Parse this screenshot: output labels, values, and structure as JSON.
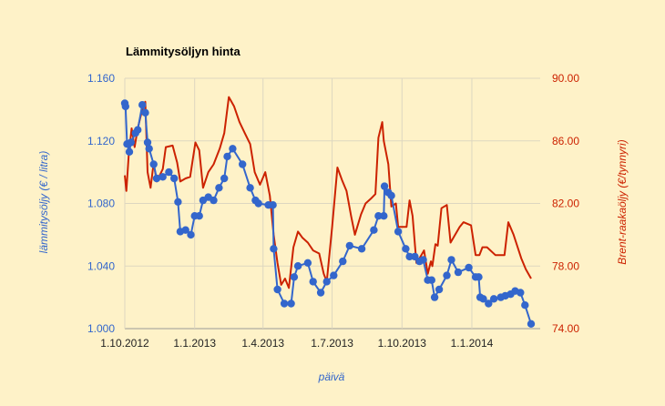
{
  "chart_data": {
    "type": "line",
    "title": "Lämmitysöljyn hinta",
    "xlabel": "päivä",
    "ylabel_left": "lämmitysöljy (€ / litra)",
    "ylabel_right": "Brent-raakaöljy (€/tynnyri)",
    "x_ticks": [
      {
        "label": "1.10.2012",
        "date": "2012-10-01"
      },
      {
        "label": "1.1.2013",
        "date": "2013-01-01"
      },
      {
        "label": "1.4.2013",
        "date": "2013-04-01"
      },
      {
        "label": "1.7.2013",
        "date": "2013-07-01"
      },
      {
        "label": "1.10.2013",
        "date": "2013-10-01"
      },
      {
        "label": "1.1.2014",
        "date": "2014-01-01"
      }
    ],
    "xlim": [
      "2012-10-01",
      "2014-04-01"
    ],
    "y_left": {
      "range": [
        1.0,
        1.16
      ],
      "ticks": [
        "1.000",
        "1.040",
        "1.080",
        "1.120",
        "1.160"
      ],
      "color": "#3366cc"
    },
    "y_right": {
      "range": [
        74.0,
        90.0
      ],
      "ticks": [
        "74.00",
        "78.00",
        "82.00",
        "86.00",
        "90.00"
      ],
      "color": "#cc2200"
    },
    "grid": true,
    "series": [
      {
        "axis": "left",
        "color": "#3366cc",
        "marker": "circle",
        "points": [
          [
            "2012-10-01",
            1.144
          ],
          [
            "2012-10-02",
            1.142
          ],
          [
            "2012-10-04",
            1.118
          ],
          [
            "2012-10-07",
            1.113
          ],
          [
            "2012-10-09",
            1.119
          ],
          [
            "2012-10-15",
            1.125
          ],
          [
            "2012-10-18",
            1.127
          ],
          [
            "2012-10-24",
            1.143
          ],
          [
            "2012-10-28",
            1.138
          ],
          [
            "2012-10-31",
            1.119
          ],
          [
            "2012-11-02",
            1.115
          ],
          [
            "2012-11-08",
            1.105
          ],
          [
            "2012-11-12",
            1.096
          ],
          [
            "2012-11-20",
            1.097
          ],
          [
            "2012-11-28",
            1.1
          ],
          [
            "2012-12-05",
            1.096
          ],
          [
            "2012-12-10",
            1.081
          ],
          [
            "2012-12-13",
            1.062
          ],
          [
            "2012-12-20",
            1.063
          ],
          [
            "2012-12-27",
            1.06
          ],
          [
            "2013-01-01",
            1.072
          ],
          [
            "2013-01-07",
            1.072
          ],
          [
            "2013-01-12",
            1.082
          ],
          [
            "2013-01-19",
            1.084
          ],
          [
            "2013-01-26",
            1.082
          ],
          [
            "2013-02-02",
            1.09
          ],
          [
            "2013-02-09",
            1.096
          ],
          [
            "2013-02-13",
            1.11
          ],
          [
            "2013-02-20",
            1.115
          ],
          [
            "2013-03-05",
            1.105
          ],
          [
            "2013-03-15",
            1.09
          ],
          [
            "2013-03-22",
            1.082
          ],
          [
            "2013-03-26",
            1.08
          ],
          [
            "2013-04-08",
            1.079
          ],
          [
            "2013-04-14",
            1.079
          ],
          [
            "2013-04-15",
            1.051
          ],
          [
            "2013-04-20",
            1.025
          ],
          [
            "2013-04-29",
            1.016
          ],
          [
            "2013-05-08",
            1.016
          ],
          [
            "2013-05-12",
            1.033
          ],
          [
            "2013-05-17",
            1.04
          ],
          [
            "2013-05-30",
            1.042
          ],
          [
            "2013-06-06",
            1.03
          ],
          [
            "2013-06-16",
            1.023
          ],
          [
            "2013-06-24",
            1.03
          ],
          [
            "2013-07-03",
            1.034
          ],
          [
            "2013-07-15",
            1.043
          ],
          [
            "2013-07-24",
            1.053
          ],
          [
            "2013-08-09",
            1.051
          ],
          [
            "2013-08-25",
            1.063
          ],
          [
            "2013-08-31",
            1.072
          ],
          [
            "2013-09-07",
            1.072
          ],
          [
            "2013-09-08",
            1.091
          ],
          [
            "2013-09-13",
            1.087
          ],
          [
            "2013-09-17",
            1.085
          ],
          [
            "2013-09-26",
            1.062
          ],
          [
            "2013-10-06",
            1.051
          ],
          [
            "2013-10-11",
            1.046
          ],
          [
            "2013-10-18",
            1.046
          ],
          [
            "2013-10-24",
            1.043
          ],
          [
            "2013-10-29",
            1.044
          ],
          [
            "2013-11-04",
            1.031
          ],
          [
            "2013-11-09",
            1.031
          ],
          [
            "2013-11-13",
            1.02
          ],
          [
            "2013-11-19",
            1.025
          ],
          [
            "2013-11-29",
            1.034
          ],
          [
            "2013-12-05",
            1.044
          ],
          [
            "2013-12-14",
            1.036
          ],
          [
            "2013-12-28",
            1.039
          ],
          [
            "2014-01-06",
            1.033
          ],
          [
            "2014-01-10",
            1.033
          ],
          [
            "2014-01-12",
            1.02
          ],
          [
            "2014-01-16",
            1.019
          ],
          [
            "2014-01-23",
            1.016
          ],
          [
            "2014-01-30",
            1.019
          ],
          [
            "2014-02-08",
            1.02
          ],
          [
            "2014-02-14",
            1.021
          ],
          [
            "2014-02-21",
            1.022
          ],
          [
            "2014-02-27",
            1.024
          ],
          [
            "2014-03-06",
            1.023
          ],
          [
            "2014-03-12",
            1.015
          ],
          [
            "2014-03-20",
            1.003
          ]
        ]
      },
      {
        "axis": "right",
        "color": "#cc2200",
        "marker": "none",
        "points": [
          [
            "2012-10-01",
            83.8
          ],
          [
            "2012-10-03",
            82.8
          ],
          [
            "2012-10-06",
            85.0
          ],
          [
            "2012-10-10",
            86.8
          ],
          [
            "2012-10-14",
            85.6
          ],
          [
            "2012-10-18",
            86.8
          ],
          [
            "2012-10-24",
            88.0
          ],
          [
            "2012-10-28",
            88.5
          ],
          [
            "2012-10-31",
            84.0
          ],
          [
            "2012-11-04",
            83.0
          ],
          [
            "2012-11-08",
            84.6
          ],
          [
            "2012-11-12",
            83.4
          ],
          [
            "2012-11-20",
            84.2
          ],
          [
            "2012-11-24",
            85.6
          ],
          [
            "2012-12-03",
            85.7
          ],
          [
            "2012-12-09",
            84.6
          ],
          [
            "2012-12-13",
            83.4
          ],
          [
            "2012-12-20",
            83.6
          ],
          [
            "2012-12-26",
            83.7
          ],
          [
            "2013-01-02",
            85.9
          ],
          [
            "2013-01-07",
            85.4
          ],
          [
            "2013-01-12",
            83.0
          ],
          [
            "2013-01-19",
            84.0
          ],
          [
            "2013-01-26",
            84.5
          ],
          [
            "2013-02-03",
            85.5
          ],
          [
            "2013-02-09",
            86.5
          ],
          [
            "2013-02-15",
            88.8
          ],
          [
            "2013-02-22",
            88.2
          ],
          [
            "2013-03-01",
            87.2
          ],
          [
            "2013-03-08",
            86.5
          ],
          [
            "2013-03-15",
            85.8
          ],
          [
            "2013-03-21",
            84.0
          ],
          [
            "2013-03-28",
            83.2
          ],
          [
            "2013-04-04",
            84.0
          ],
          [
            "2013-04-10",
            82.5
          ],
          [
            "2013-04-15",
            80.0
          ],
          [
            "2013-04-20",
            78.2
          ],
          [
            "2013-04-25",
            76.8
          ],
          [
            "2013-04-30",
            77.2
          ],
          [
            "2013-05-05",
            76.6
          ],
          [
            "2013-05-11",
            79.2
          ],
          [
            "2013-05-17",
            80.2
          ],
          [
            "2013-05-23",
            79.8
          ],
          [
            "2013-05-30",
            79.5
          ],
          [
            "2013-06-06",
            79.0
          ],
          [
            "2013-06-14",
            78.8
          ],
          [
            "2013-06-20",
            77.5
          ],
          [
            "2013-06-24",
            77.0
          ],
          [
            "2013-07-01",
            80.5
          ],
          [
            "2013-07-08",
            84.3
          ],
          [
            "2013-07-14",
            83.5
          ],
          [
            "2013-07-20",
            82.8
          ],
          [
            "2013-07-26",
            81.2
          ],
          [
            "2013-07-31",
            80.0
          ],
          [
            "2013-08-08",
            81.3
          ],
          [
            "2013-08-14",
            82.0
          ],
          [
            "2013-08-21",
            82.3
          ],
          [
            "2013-08-27",
            82.6
          ],
          [
            "2013-08-31",
            86.2
          ],
          [
            "2013-09-05",
            87.2
          ],
          [
            "2013-09-07",
            86.0
          ],
          [
            "2013-09-13",
            84.5
          ],
          [
            "2013-09-17",
            81.8
          ],
          [
            "2013-09-23",
            82.0
          ],
          [
            "2013-09-26",
            80.5
          ],
          [
            "2013-10-01",
            80.5
          ],
          [
            "2013-10-07",
            80.5
          ],
          [
            "2013-10-11",
            82.2
          ],
          [
            "2013-10-15",
            81.2
          ],
          [
            "2013-10-20",
            78.2
          ],
          [
            "2013-10-24",
            78.5
          ],
          [
            "2013-10-30",
            79.0
          ],
          [
            "2013-11-04",
            77.5
          ],
          [
            "2013-11-08",
            78.3
          ],
          [
            "2013-11-10",
            78.0
          ],
          [
            "2013-11-14",
            79.4
          ],
          [
            "2013-11-17",
            79.3
          ],
          [
            "2013-11-22",
            81.7
          ],
          [
            "2013-11-29",
            81.9
          ],
          [
            "2013-12-04",
            79.5
          ],
          [
            "2013-12-10",
            80.0
          ],
          [
            "2013-12-16",
            80.5
          ],
          [
            "2013-12-21",
            80.8
          ],
          [
            "2013-12-31",
            80.6
          ],
          [
            "2014-01-06",
            78.7
          ],
          [
            "2014-01-11",
            78.7
          ],
          [
            "2014-01-15",
            79.2
          ],
          [
            "2014-01-21",
            79.2
          ],
          [
            "2014-02-01",
            78.7
          ],
          [
            "2014-02-13",
            78.7
          ],
          [
            "2014-02-18",
            80.8
          ],
          [
            "2014-02-25",
            80.0
          ],
          [
            "2014-03-07",
            78.5
          ],
          [
            "2014-03-13",
            77.8
          ],
          [
            "2014-03-20",
            77.2
          ]
        ]
      }
    ]
  }
}
